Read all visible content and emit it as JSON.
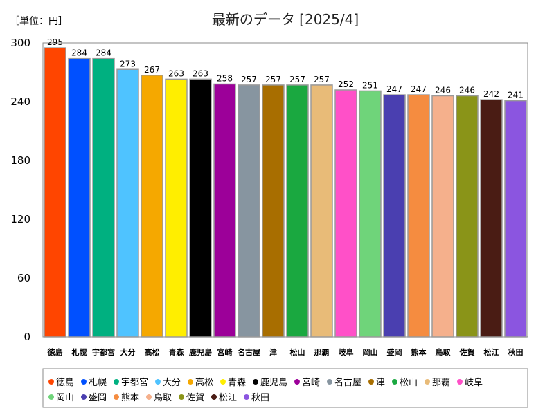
{
  "chart_data": {
    "type": "bar",
    "title": "最新のデータ [2025/4]",
    "unit_label": "［単位：円］",
    "categories": [
      "徳島",
      "札幌",
      "宇都宮",
      "大分",
      "高松",
      "青森",
      "鹿児島",
      "宮崎",
      "名古屋",
      "津",
      "松山",
      "那覇",
      "岐阜",
      "岡山",
      "盛岡",
      "熊本",
      "鳥取",
      "佐賀",
      "松江",
      "秋田"
    ],
    "values": [
      295,
      284,
      284,
      273,
      267,
      263,
      263,
      258,
      257,
      257,
      257,
      257,
      252,
      251,
      247,
      247,
      246,
      246,
      242,
      241
    ],
    "colors": [
      "#ff4500",
      "#0050ff",
      "#00b080",
      "#4fc3ff",
      "#f5a800",
      "#ffee00",
      "#000000",
      "#9c0099",
      "#8795a0",
      "#a86e00",
      "#1aa840",
      "#e8bb78",
      "#ff50c8",
      "#6fd47a",
      "#4a3fb0",
      "#f58c40",
      "#f5b08c",
      "#8a9418",
      "#4a1c14",
      "#8b55e0"
    ],
    "yticks": [
      0,
      60,
      120,
      180,
      240,
      300
    ],
    "ylim": [
      0,
      300
    ],
    "legend": "bottom",
    "grid": false
  }
}
